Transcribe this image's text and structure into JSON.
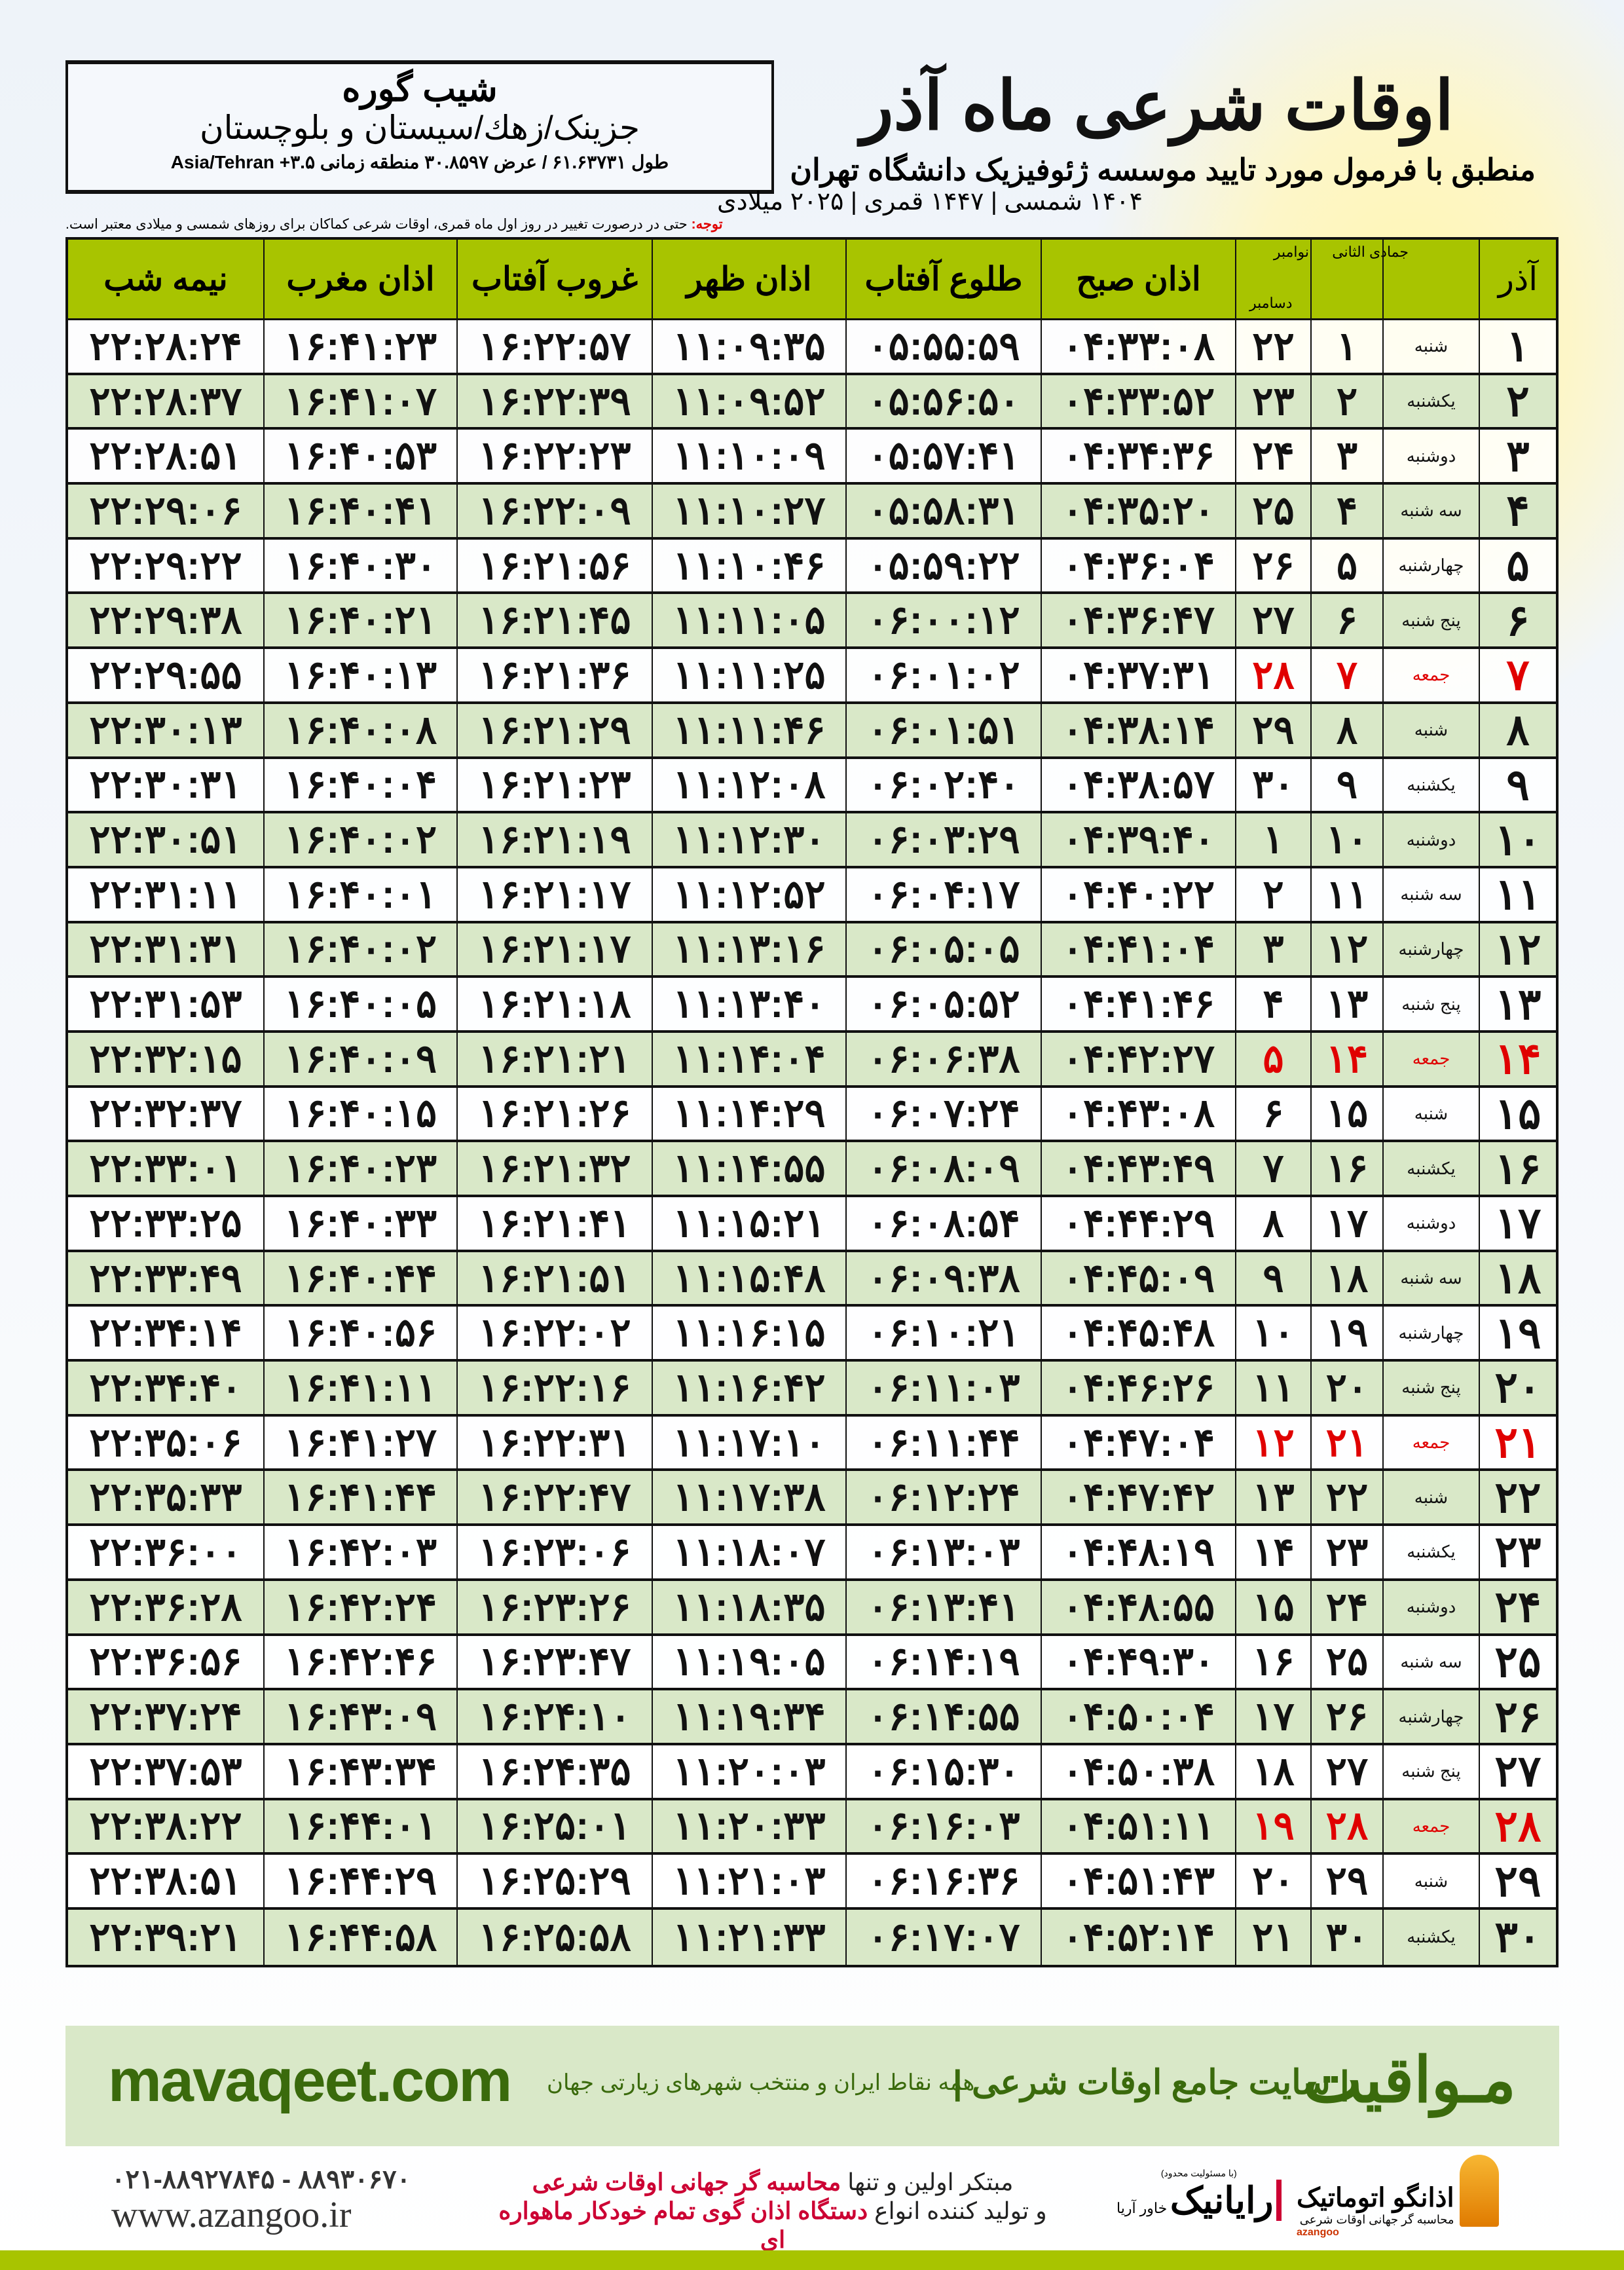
{
  "header": {
    "title": "اوقات شرعی ماه آذر",
    "subtitle": "منطبق با فرمول مورد تایید موسسه ژئوفیزیک دانشگاه تهران",
    "years": "۱۴۰۴ شمسی | ۱۴۴۷ قمری | ۲۰۲۵ میلادی"
  },
  "location": {
    "city": "شیب گوره",
    "province": "جزینک/زهك/سیستان و بلوچستان",
    "coords": "طول ۶۱.۶۳۷۳۱ / عرض ۳۰.۸۵۹۷ منطقه زمانی ۳.۵+ Asia/Tehran"
  },
  "note": {
    "label": "توجه:",
    "text": " حتی در درصورت تغییر در روز اول ماه قمری، اوقات شرعی کماکان برای روزهای شمسی و میلادی معتبر است."
  },
  "table": {
    "headers": {
      "azar": "آذر",
      "hijri": "جمادی الثانی",
      "greg_top": "نوامبر",
      "greg_bottom": "دسامبر",
      "sobh": "اذان صبح",
      "tolu": "طلوع آفتاب",
      "zohr": "اذان ظهر",
      "ghorub": "غروب آفتاب",
      "maghrib": "اذان مغرب",
      "nime": "نیمه شب"
    },
    "friday_color": "#e00000",
    "header_color": "#a8c400",
    "alt_row_color": "#d9e8c8",
    "rows": [
      [
        "۱",
        "شنبه",
        "۱",
        "۲۲",
        "۰۴:۳۳:۰۸",
        "۰۵:۵۵:۵۹",
        "۱۱:۰۹:۳۵",
        "۱۶:۲۲:۵۷",
        "۱۶:۴۱:۲۳",
        "۲۲:۲۸:۲۴"
      ],
      [
        "۲",
        "یکشنبه",
        "۲",
        "۲۳",
        "۰۴:۳۳:۵۲",
        "۰۵:۵۶:۵۰",
        "۱۱:۰۹:۵۲",
        "۱۶:۲۲:۳۹",
        "۱۶:۴۱:۰۷",
        "۲۲:۲۸:۳۷"
      ],
      [
        "۳",
        "دوشنبه",
        "۳",
        "۲۴",
        "۰۴:۳۴:۳۶",
        "۰۵:۵۷:۴۱",
        "۱۱:۱۰:۰۹",
        "۱۶:۲۲:۲۳",
        "۱۶:۴۰:۵۳",
        "۲۲:۲۸:۵۱"
      ],
      [
        "۴",
        "سه شنبه",
        "۴",
        "۲۵",
        "۰۴:۳۵:۲۰",
        "۰۵:۵۸:۳۱",
        "۱۱:۱۰:۲۷",
        "۱۶:۲۲:۰۹",
        "۱۶:۴۰:۴۱",
        "۲۲:۲۹:۰۶"
      ],
      [
        "۵",
        "چهارشنبه",
        "۵",
        "۲۶",
        "۰۴:۳۶:۰۴",
        "۰۵:۵۹:۲۲",
        "۱۱:۱۰:۴۶",
        "۱۶:۲۱:۵۶",
        "۱۶:۴۰:۳۰",
        "۲۲:۲۹:۲۲"
      ],
      [
        "۶",
        "پنج شنبه",
        "۶",
        "۲۷",
        "۰۴:۳۶:۴۷",
        "۰۶:۰۰:۱۲",
        "۱۱:۱۱:۰۵",
        "۱۶:۲۱:۴۵",
        "۱۶:۴۰:۲۱",
        "۲۲:۲۹:۳۸"
      ],
      [
        "۷",
        "جمعه",
        "۷",
        "۲۸",
        "۰۴:۳۷:۳۱",
        "۰۶:۰۱:۰۲",
        "۱۱:۱۱:۲۵",
        "۱۶:۲۱:۳۶",
        "۱۶:۴۰:۱۳",
        "۲۲:۲۹:۵۵"
      ],
      [
        "۸",
        "شنبه",
        "۸",
        "۲۹",
        "۰۴:۳۸:۱۴",
        "۰۶:۰۱:۵۱",
        "۱۱:۱۱:۴۶",
        "۱۶:۲۱:۲۹",
        "۱۶:۴۰:۰۸",
        "۲۲:۳۰:۱۳"
      ],
      [
        "۹",
        "یکشنبه",
        "۹",
        "۳۰",
        "۰۴:۳۸:۵۷",
        "۰۶:۰۲:۴۰",
        "۱۱:۱۲:۰۸",
        "۱۶:۲۱:۲۳",
        "۱۶:۴۰:۰۴",
        "۲۲:۳۰:۳۱"
      ],
      [
        "۱۰",
        "دوشنبه",
        "۱۰",
        "۱",
        "۰۴:۳۹:۴۰",
        "۰۶:۰۳:۲۹",
        "۱۱:۱۲:۳۰",
        "۱۶:۲۱:۱۹",
        "۱۶:۴۰:۰۲",
        "۲۲:۳۰:۵۱"
      ],
      [
        "۱۱",
        "سه شنبه",
        "۱۱",
        "۲",
        "۰۴:۴۰:۲۲",
        "۰۶:۰۴:۱۷",
        "۱۱:۱۲:۵۲",
        "۱۶:۲۱:۱۷",
        "۱۶:۴۰:۰۱",
        "۲۲:۳۱:۱۱"
      ],
      [
        "۱۲",
        "چهارشنبه",
        "۱۲",
        "۳",
        "۰۴:۴۱:۰۴",
        "۰۶:۰۵:۰۵",
        "۱۱:۱۳:۱۶",
        "۱۶:۲۱:۱۷",
        "۱۶:۴۰:۰۲",
        "۲۲:۳۱:۳۱"
      ],
      [
        "۱۳",
        "پنج شنبه",
        "۱۳",
        "۴",
        "۰۴:۴۱:۴۶",
        "۰۶:۰۵:۵۲",
        "۱۱:۱۳:۴۰",
        "۱۶:۲۱:۱۸",
        "۱۶:۴۰:۰۵",
        "۲۲:۳۱:۵۳"
      ],
      [
        "۱۴",
        "جمعه",
        "۱۴",
        "۵",
        "۰۴:۴۲:۲۷",
        "۰۶:۰۶:۳۸",
        "۱۱:۱۴:۰۴",
        "۱۶:۲۱:۲۱",
        "۱۶:۴۰:۰۹",
        "۲۲:۳۲:۱۵"
      ],
      [
        "۱۵",
        "شنبه",
        "۱۵",
        "۶",
        "۰۴:۴۳:۰۸",
        "۰۶:۰۷:۲۴",
        "۱۱:۱۴:۲۹",
        "۱۶:۲۱:۲۶",
        "۱۶:۴۰:۱۵",
        "۲۲:۳۲:۳۷"
      ],
      [
        "۱۶",
        "یکشنبه",
        "۱۶",
        "۷",
        "۰۴:۴۳:۴۹",
        "۰۶:۰۸:۰۹",
        "۱۱:۱۴:۵۵",
        "۱۶:۲۱:۳۲",
        "۱۶:۴۰:۲۳",
        "۲۲:۳۳:۰۱"
      ],
      [
        "۱۷",
        "دوشنبه",
        "۱۷",
        "۸",
        "۰۴:۴۴:۲۹",
        "۰۶:۰۸:۵۴",
        "۱۱:۱۵:۲۱",
        "۱۶:۲۱:۴۱",
        "۱۶:۴۰:۳۳",
        "۲۲:۳۳:۲۵"
      ],
      [
        "۱۸",
        "سه شنبه",
        "۱۸",
        "۹",
        "۰۴:۴۵:۰۹",
        "۰۶:۰۹:۳۸",
        "۱۱:۱۵:۴۸",
        "۱۶:۲۱:۵۱",
        "۱۶:۴۰:۴۴",
        "۲۲:۳۳:۴۹"
      ],
      [
        "۱۹",
        "چهارشنبه",
        "۱۹",
        "۱۰",
        "۰۴:۴۵:۴۸",
        "۰۶:۱۰:۲۱",
        "۱۱:۱۶:۱۵",
        "۱۶:۲۲:۰۲",
        "۱۶:۴۰:۵۶",
        "۲۲:۳۴:۱۴"
      ],
      [
        "۲۰",
        "پنج شنبه",
        "۲۰",
        "۱۱",
        "۰۴:۴۶:۲۶",
        "۰۶:۱۱:۰۳",
        "۱۱:۱۶:۴۲",
        "۱۶:۲۲:۱۶",
        "۱۶:۴۱:۱۱",
        "۲۲:۳۴:۴۰"
      ],
      [
        "۲۱",
        "جمعه",
        "۲۱",
        "۱۲",
        "۰۴:۴۷:۰۴",
        "۰۶:۱۱:۴۴",
        "۱۱:۱۷:۱۰",
        "۱۶:۲۲:۳۱",
        "۱۶:۴۱:۲۷",
        "۲۲:۳۵:۰۶"
      ],
      [
        "۲۲",
        "شنبه",
        "۲۲",
        "۱۳",
        "۰۴:۴۷:۴۲",
        "۰۶:۱۲:۲۴",
        "۱۱:۱۷:۳۸",
        "۱۶:۲۲:۴۷",
        "۱۶:۴۱:۴۴",
        "۲۲:۳۵:۳۳"
      ],
      [
        "۲۳",
        "یکشنبه",
        "۲۳",
        "۱۴",
        "۰۴:۴۸:۱۹",
        "۰۶:۱۳:۰۳",
        "۱۱:۱۸:۰۷",
        "۱۶:۲۳:۰۶",
        "۱۶:۴۲:۰۳",
        "۲۲:۳۶:۰۰"
      ],
      [
        "۲۴",
        "دوشنبه",
        "۲۴",
        "۱۵",
        "۰۴:۴۸:۵۵",
        "۰۶:۱۳:۴۱",
        "۱۱:۱۸:۳۵",
        "۱۶:۲۳:۲۶",
        "۱۶:۴۲:۲۴",
        "۲۲:۳۶:۲۸"
      ],
      [
        "۲۵",
        "سه شنبه",
        "۲۵",
        "۱۶",
        "۰۴:۴۹:۳۰",
        "۰۶:۱۴:۱۹",
        "۱۱:۱۹:۰۵",
        "۱۶:۲۳:۴۷",
        "۱۶:۴۲:۴۶",
        "۲۲:۳۶:۵۶"
      ],
      [
        "۲۶",
        "چهارشنبه",
        "۲۶",
        "۱۷",
        "۰۴:۵۰:۰۴",
        "۰۶:۱۴:۵۵",
        "۱۱:۱۹:۳۴",
        "۱۶:۲۴:۱۰",
        "۱۶:۴۳:۰۹",
        "۲۲:۳۷:۲۴"
      ],
      [
        "۲۷",
        "پنج شنبه",
        "۲۷",
        "۱۸",
        "۰۴:۵۰:۳۸",
        "۰۶:۱۵:۳۰",
        "۱۱:۲۰:۰۳",
        "۱۶:۲۴:۳۵",
        "۱۶:۴۳:۳۴",
        "۲۲:۳۷:۵۳"
      ],
      [
        "۲۸",
        "جمعه",
        "۲۸",
        "۱۹",
        "۰۴:۵۱:۱۱",
        "۰۶:۱۶:۰۳",
        "۱۱:۲۰:۳۳",
        "۱۶:۲۵:۰۱",
        "۱۶:۴۴:۰۱",
        "۲۲:۳۸:۲۲"
      ],
      [
        "۲۹",
        "شنبه",
        "۲۹",
        "۲۰",
        "۰۴:۵۱:۴۳",
        "۰۶:۱۶:۳۶",
        "۱۱:۲۱:۰۳",
        "۱۶:۲۵:۲۹",
        "۱۶:۴۴:۲۹",
        "۲۲:۳۸:۵۱"
      ],
      [
        "۳۰",
        "یکشنبه",
        "۳۰",
        "۲۱",
        "۰۴:۵۲:۱۴",
        "۰۶:۱۷:۰۷",
        "۱۱:۲۱:۳۳",
        "۱۶:۲۵:۵۸",
        "۱۶:۴۴:۵۸",
        "۲۲:۳۹:۲۱"
      ]
    ]
  },
  "banner": {
    "site": "mavaqeet.com",
    "brand": "مـواقیت",
    "tagline": "| سایت جامع اوقات شرعی |",
    "sub": "همه نقاط ایران و منتخب شهرهای زیارتی جهان",
    "color": "#3a6a0c"
  },
  "footer": {
    "phone": "۰۲۱-۸۸۹۲۷۸۴۵ - ۸۸۹۳۰۶۷۰",
    "website": "www.azangoo.ir",
    "promo_1a": "مبتکر اولین و تنها ",
    "promo_1b": "محاسبه گر جهانی اوقات شرعی",
    "promo_2a": "و تولید کننده انواع ",
    "promo_2b": "دستگاه اذان گوی تمام خودکار ماهواره ای",
    "rayanik_small": "(با مسئولیت محدود)",
    "rayanik": "رایانیک",
    "rayanik_side": "خاور آریا",
    "azangoo": "اذانگو اتوماتیک",
    "azangoo_sub": "محاسبه گر جهانی اوقات شرعی",
    "azangoo_en": "azangoo"
  }
}
